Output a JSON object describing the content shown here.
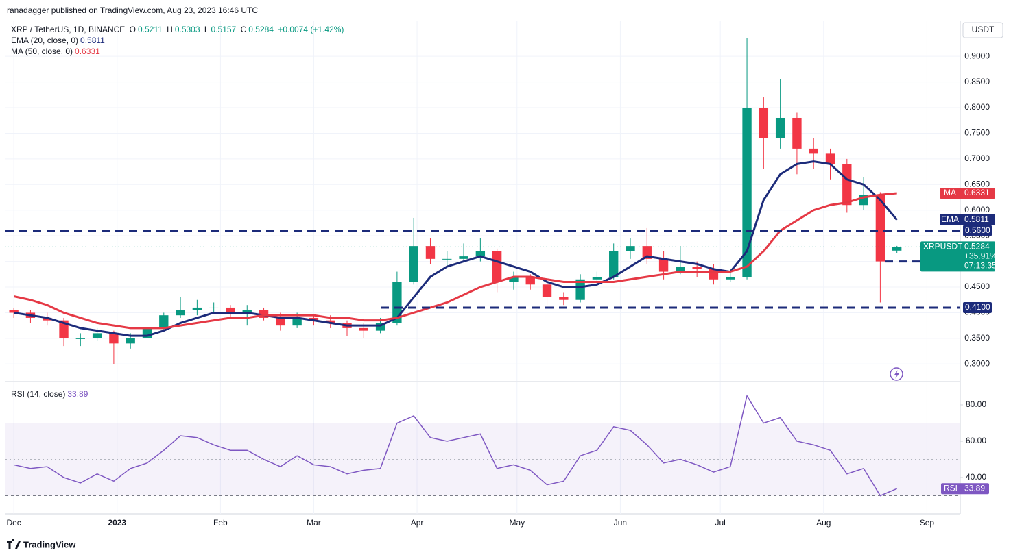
{
  "header": {
    "published": "ranadagger published on TradingView.com, Aug 23, 2023 16:46 UTC",
    "symbol": "XRP / TetherUS, 1D, BINANCE",
    "o_label": "O",
    "h_label": "H",
    "l_label": "L",
    "c_label": "C",
    "change": "+0.0074 (+1.42%)"
  },
  "chart_data": [
    {
      "type": "candlestick",
      "axis_label": "USDT",
      "grid": true,
      "up_color": "#089981",
      "down_color": "#f23645",
      "xlim": [
        -2.5,
        284
      ],
      "ylim": [
        0.267,
        0.963
      ],
      "xticks": [
        {
          "value": 0,
          "label": "Dec"
        },
        {
          "value": 31,
          "label": "2023"
        },
        {
          "value": 62,
          "label": "Feb"
        },
        {
          "value": 90,
          "label": "Mar"
        },
        {
          "value": 121,
          "label": "Apr"
        },
        {
          "value": 151,
          "label": "May"
        },
        {
          "value": 182,
          "label": "Jun"
        },
        {
          "value": 212,
          "label": "Jul"
        },
        {
          "value": 243,
          "label": "Aug"
        },
        {
          "value": 274,
          "label": "Sep"
        }
      ],
      "yticks": [
        {
          "value": 0.3,
          "label": "0.3000"
        },
        {
          "value": 0.35,
          "label": "0.3500"
        },
        {
          "value": 0.4,
          "label": "0.4000"
        },
        {
          "value": 0.45,
          "label": "0.4500"
        },
        {
          "value": 0.5,
          "label": "0.5000"
        },
        {
          "value": 0.55,
          "label": "0.5500"
        },
        {
          "value": 0.6,
          "label": "0.6000"
        },
        {
          "value": 0.65,
          "label": "0.6500"
        },
        {
          "value": 0.7,
          "label": "0.7000"
        },
        {
          "value": 0.75,
          "label": "0.7500"
        },
        {
          "value": 0.8,
          "label": "0.8000"
        },
        {
          "value": 0.85,
          "label": "0.8500"
        },
        {
          "value": 0.9,
          "label": "0.9000"
        }
      ],
      "x": [
        0,
        5,
        10,
        15,
        20,
        25,
        30,
        35,
        40,
        45,
        50,
        55,
        60,
        65,
        70,
        75,
        80,
        85,
        90,
        95,
        100,
        105,
        110,
        115,
        120,
        125,
        130,
        135,
        140,
        145,
        150,
        155,
        160,
        165,
        170,
        175,
        180,
        185,
        190,
        195,
        200,
        205,
        210,
        215,
        220,
        225,
        230,
        235,
        240,
        245,
        250,
        255,
        260,
        265
      ],
      "open": [
        0.405,
        0.4,
        0.39,
        0.385,
        0.35,
        0.35,
        0.36,
        0.34,
        0.35,
        0.37,
        0.395,
        0.405,
        0.41,
        0.41,
        0.4,
        0.405,
        0.39,
        0.375,
        0.39,
        0.385,
        0.38,
        0.37,
        0.365,
        0.38,
        0.46,
        0.53,
        0.505,
        0.505,
        0.51,
        0.52,
        0.46,
        0.47,
        0.455,
        0.43,
        0.425,
        0.465,
        0.47,
        0.52,
        0.53,
        0.505,
        0.48,
        0.49,
        0.485,
        0.465,
        0.47,
        0.8,
        0.74,
        0.78,
        0.72,
        0.71,
        0.69,
        0.61,
        0.63,
        0.5211
      ],
      "high": [
        0.41,
        0.405,
        0.4,
        0.39,
        0.36,
        0.37,
        0.365,
        0.36,
        0.38,
        0.4,
        0.43,
        0.425,
        0.42,
        0.415,
        0.415,
        0.41,
        0.4,
        0.4,
        0.395,
        0.395,
        0.385,
        0.38,
        0.39,
        0.48,
        0.585,
        0.545,
        0.52,
        0.535,
        0.545,
        0.525,
        0.48,
        0.475,
        0.46,
        0.44,
        0.475,
        0.48,
        0.535,
        0.545,
        0.565,
        0.52,
        0.53,
        0.5,
        0.495,
        0.485,
        0.935,
        0.82,
        0.855,
        0.79,
        0.74,
        0.72,
        0.7,
        0.665,
        0.635,
        0.5303
      ],
      "low": [
        0.39,
        0.38,
        0.375,
        0.335,
        0.335,
        0.345,
        0.3,
        0.33,
        0.345,
        0.365,
        0.39,
        0.395,
        0.4,
        0.39,
        0.375,
        0.385,
        0.365,
        0.37,
        0.375,
        0.37,
        0.355,
        0.35,
        0.36,
        0.375,
        0.455,
        0.495,
        0.49,
        0.5,
        0.5,
        0.44,
        0.445,
        0.445,
        0.415,
        0.415,
        0.42,
        0.455,
        0.465,
        0.505,
        0.495,
        0.465,
        0.475,
        0.47,
        0.455,
        0.46,
        0.465,
        0.68,
        0.72,
        0.67,
        0.68,
        0.66,
        0.595,
        0.6,
        0.42,
        0.5157
      ],
      "close": [
        0.4,
        0.39,
        0.385,
        0.35,
        0.35,
        0.36,
        0.34,
        0.35,
        0.37,
        0.395,
        0.405,
        0.41,
        0.41,
        0.4,
        0.405,
        0.39,
        0.375,
        0.39,
        0.385,
        0.38,
        0.37,
        0.365,
        0.38,
        0.46,
        0.53,
        0.505,
        0.505,
        0.51,
        0.52,
        0.46,
        0.47,
        0.455,
        0.43,
        0.425,
        0.465,
        0.47,
        0.52,
        0.53,
        0.505,
        0.48,
        0.49,
        0.485,
        0.465,
        0.47,
        0.8,
        0.74,
        0.78,
        0.72,
        0.71,
        0.69,
        0.61,
        0.63,
        0.5,
        0.5284
      ],
      "overlays": [
        {
          "name": "EMA (20, close, 0)",
          "tag": "EMA",
          "color": "#1c2b7a",
          "values": [
            0.4,
            0.395,
            0.39,
            0.38,
            0.37,
            0.365,
            0.36,
            0.355,
            0.355,
            0.365,
            0.38,
            0.39,
            0.4,
            0.4,
            0.4,
            0.395,
            0.39,
            0.39,
            0.385,
            0.38,
            0.375,
            0.375,
            0.375,
            0.39,
            0.43,
            0.47,
            0.49,
            0.5,
            0.51,
            0.5,
            0.49,
            0.48,
            0.46,
            0.45,
            0.45,
            0.455,
            0.47,
            0.49,
            0.51,
            0.505,
            0.5,
            0.495,
            0.485,
            0.48,
            0.52,
            0.62,
            0.67,
            0.69,
            0.695,
            0.69,
            0.66,
            0.65,
            0.62,
            0.5811
          ]
        },
        {
          "name": "MA (50, close, 0)",
          "tag": "MA",
          "color": "#e53945",
          "values": [
            0.432,
            0.425,
            0.415,
            0.4,
            0.39,
            0.38,
            0.375,
            0.37,
            0.37,
            0.37,
            0.375,
            0.38,
            0.385,
            0.39,
            0.39,
            0.395,
            0.395,
            0.395,
            0.395,
            0.39,
            0.39,
            0.385,
            0.385,
            0.39,
            0.4,
            0.41,
            0.42,
            0.435,
            0.45,
            0.46,
            0.47,
            0.47,
            0.465,
            0.46,
            0.46,
            0.46,
            0.46,
            0.465,
            0.47,
            0.475,
            0.48,
            0.48,
            0.48,
            0.48,
            0.49,
            0.52,
            0.56,
            0.58,
            0.6,
            0.61,
            0.615,
            0.625,
            0.63,
            0.6331
          ]
        }
      ],
      "levels": [
        {
          "value": 0.56,
          "label": "0.5600"
        },
        {
          "value": 0.5,
          "label": "0.5000"
        },
        {
          "value": 0.41,
          "label": "0.4100"
        }
      ],
      "level_color": "#1c2b7a",
      "symbol_tag": "XRPUSDT",
      "price_tag_change": "+35.91%",
      "countdown": "07:13:35"
    },
    {
      "type": "line",
      "name": "RSI (14, close)",
      "tag": "RSI",
      "color": "#7e57c2",
      "xlim": [
        -2.5,
        284
      ],
      "ylim": [
        20,
        91.7
      ],
      "band": [
        30,
        70
      ],
      "midline": 50,
      "yticks": [
        {
          "value": 40,
          "label": "40.00"
        },
        {
          "value": 60,
          "label": "60.00"
        },
        {
          "value": 80,
          "label": "80.00"
        }
      ],
      "x": [
        0,
        5,
        10,
        15,
        20,
        25,
        30,
        35,
        40,
        45,
        50,
        55,
        60,
        65,
        70,
        75,
        80,
        85,
        90,
        95,
        100,
        105,
        110,
        115,
        120,
        125,
        130,
        135,
        140,
        145,
        150,
        155,
        160,
        165,
        170,
        175,
        180,
        185,
        190,
        195,
        200,
        205,
        210,
        215,
        220,
        225,
        230,
        235,
        240,
        245,
        250,
        255,
        260,
        265
      ],
      "values": [
        47,
        45,
        46,
        40,
        37,
        42,
        38,
        45,
        48,
        55,
        63,
        62,
        58,
        55,
        55,
        50,
        46,
        52,
        47,
        46,
        42,
        44,
        45,
        70,
        74,
        62,
        60,
        62,
        64,
        45,
        47,
        44,
        36,
        38,
        52,
        55,
        68,
        66,
        58,
        48,
        50,
        47,
        43,
        46,
        85,
        70,
        73,
        60,
        58,
        55,
        42,
        45,
        30,
        33.89
      ]
    }
  ],
  "footer": {
    "brand": "TradingView"
  }
}
